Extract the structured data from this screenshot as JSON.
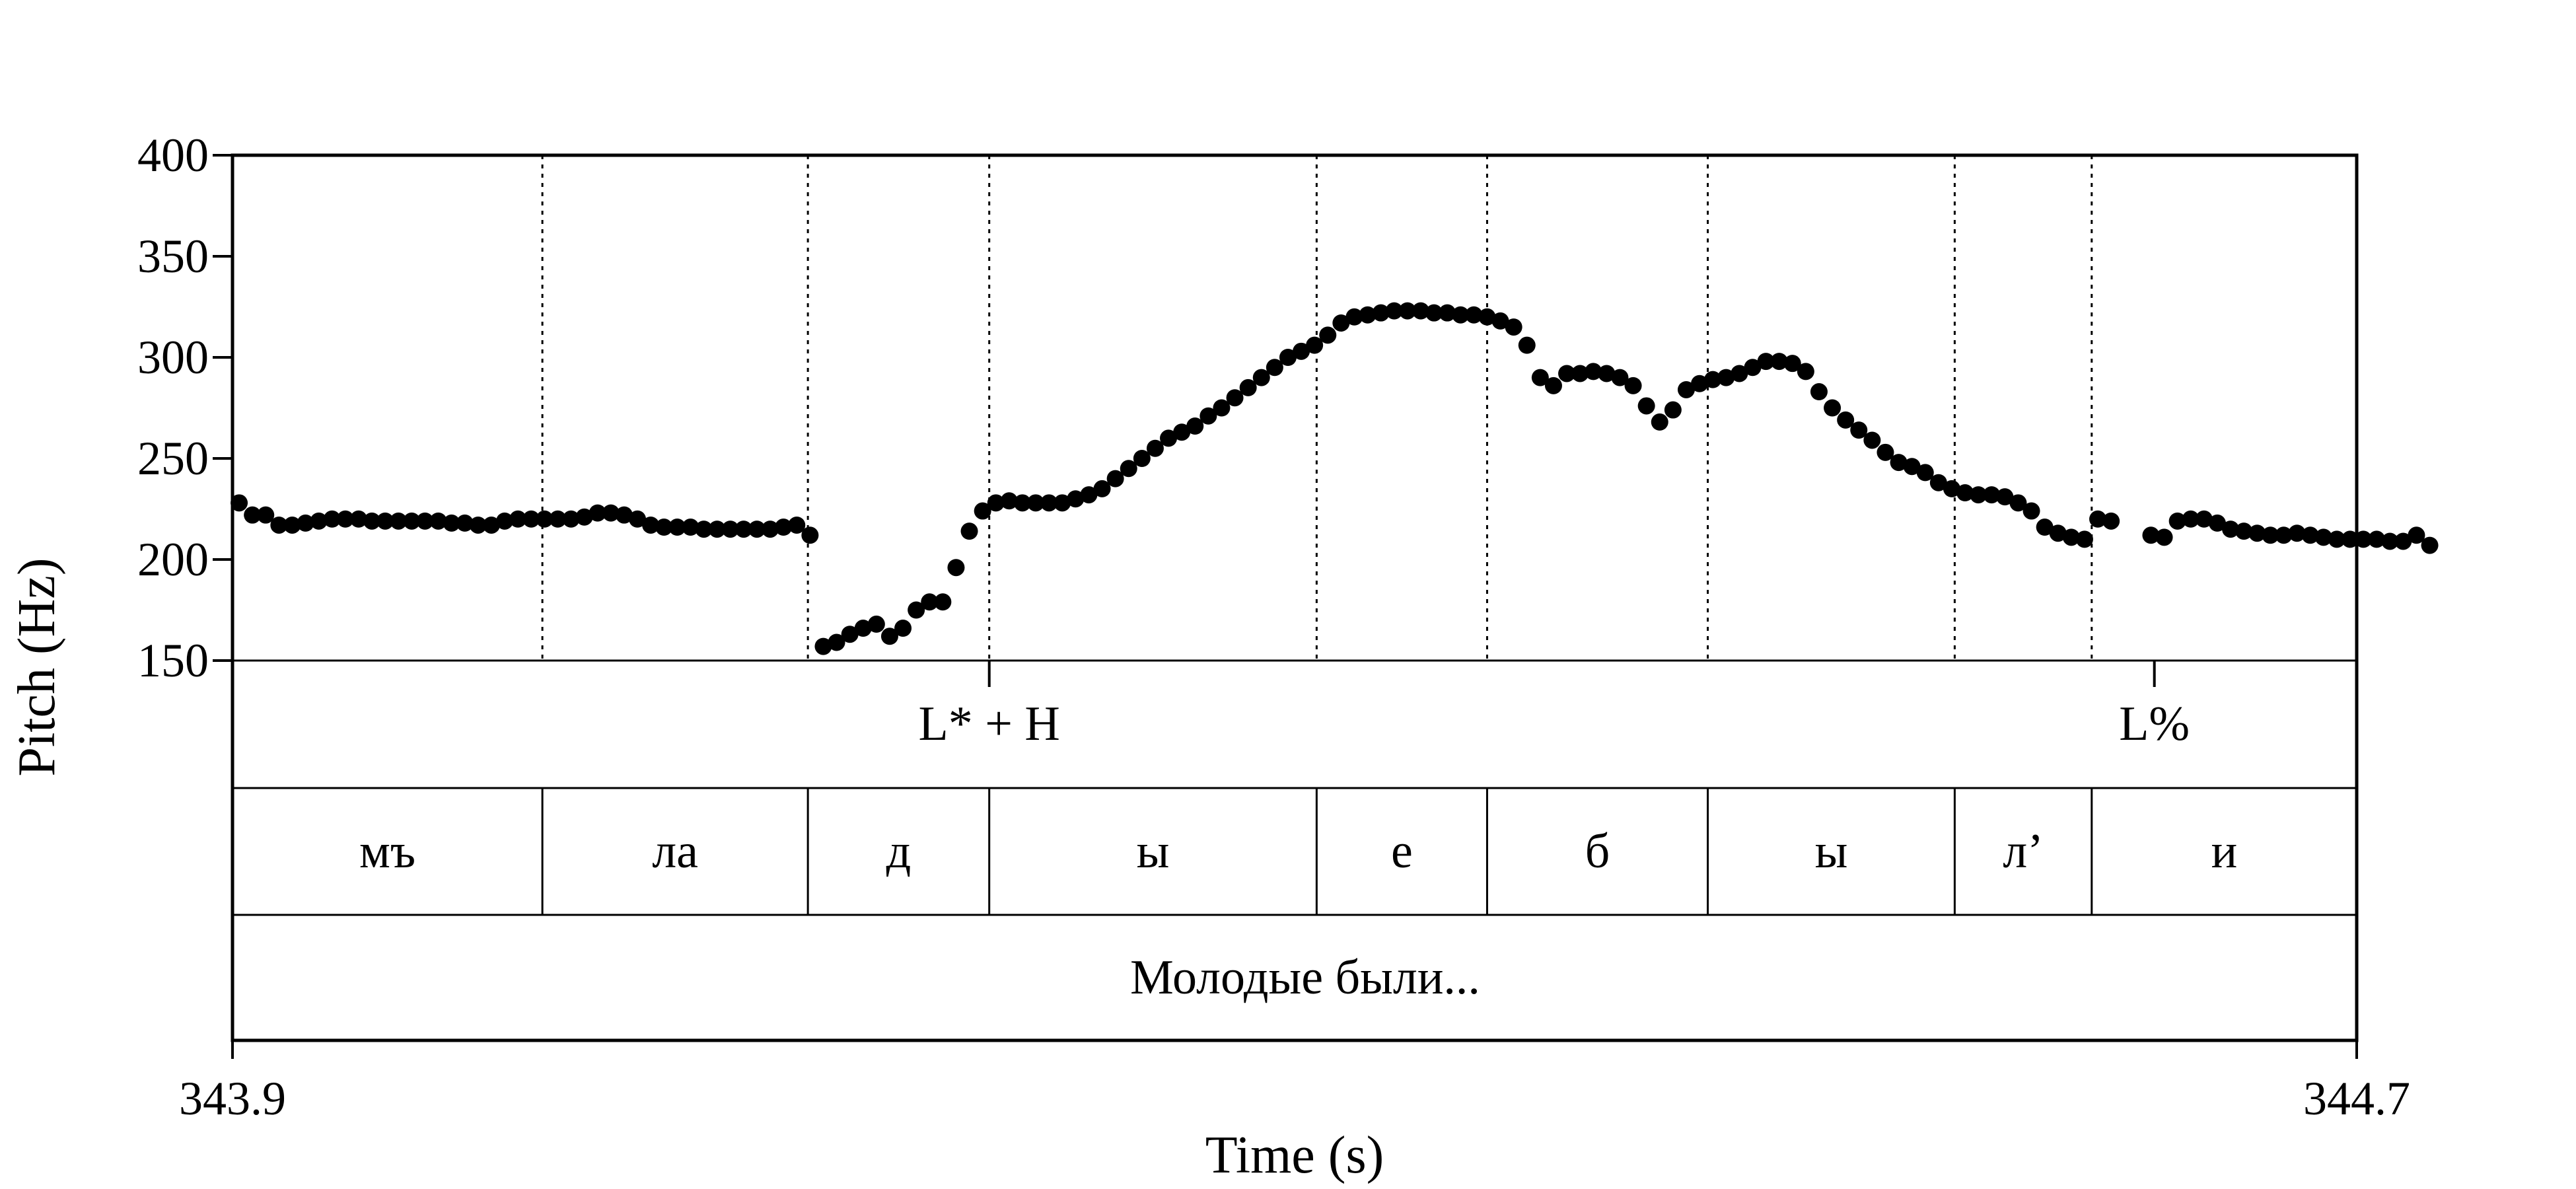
{
  "chart_data": {
    "type": "scatter",
    "xlabel": "Time (s)",
    "ylabel": "Pitch (Hz)",
    "xlim": [
      343.9,
      344.7
    ],
    "ylim": [
      150,
      400
    ],
    "x_tick_labels": [
      "343.9",
      "344.7"
    ],
    "y_ticks": [
      150,
      200,
      250,
      300,
      350,
      400
    ],
    "y_tick_labels": [
      "150",
      "200",
      "250",
      "300",
      "350",
      "400"
    ],
    "grid": "vertical dotted lines at segment boundaries",
    "legend": "none",
    "marker_color": "#000000",
    "series": [
      {
        "points": [
          [
            343.9025,
            228
          ],
          [
            343.9075,
            222
          ],
          [
            343.9125,
            222
          ],
          [
            343.9175,
            217
          ],
          [
            343.9225,
            217
          ],
          [
            343.9275,
            218
          ],
          [
            343.9325,
            219
          ],
          [
            343.9375,
            220
          ],
          [
            343.9425,
            220
          ],
          [
            343.9475,
            220
          ],
          [
            343.9525,
            219
          ],
          [
            343.9575,
            219
          ],
          [
            343.9625,
            219
          ],
          [
            343.9675,
            219
          ],
          [
            343.9725,
            219
          ],
          [
            343.9775,
            219
          ],
          [
            343.9825,
            218
          ],
          [
            343.9875,
            218
          ],
          [
            343.9925,
            217
          ],
          [
            343.9975,
            217
          ],
          [
            344.0025,
            219
          ],
          [
            344.0075,
            220
          ],
          [
            344.0125,
            220
          ],
          [
            344.0175,
            220
          ],
          [
            344.0225,
            220
          ],
          [
            344.0275,
            220
          ],
          [
            344.0325,
            221
          ],
          [
            344.0375,
            223
          ],
          [
            344.0425,
            223
          ],
          [
            344.0475,
            222
          ],
          [
            344.0525,
            220
          ],
          [
            344.0575,
            217
          ],
          [
            344.0625,
            216
          ],
          [
            344.0675,
            216
          ],
          [
            344.0725,
            216
          ],
          [
            344.0775,
            215
          ],
          [
            344.0825,
            215
          ],
          [
            344.0875,
            215
          ],
          [
            344.0925,
            215
          ],
          [
            344.0975,
            215
          ],
          [
            344.1025,
            215
          ],
          [
            344.1075,
            216
          ],
          [
            344.1125,
            217
          ],
          [
            344.1175,
            212
          ],
          [
            344.1225,
            157
          ],
          [
            344.1275,
            159
          ],
          [
            344.1325,
            163
          ],
          [
            344.1375,
            166
          ],
          [
            344.1425,
            168
          ],
          [
            344.1475,
            162
          ],
          [
            344.1525,
            166
          ],
          [
            344.1575,
            175
          ],
          [
            344.1625,
            179
          ],
          [
            344.1675,
            179
          ],
          [
            344.1725,
            196
          ],
          [
            344.1775,
            214
          ],
          [
            344.1825,
            224
          ],
          [
            344.1875,
            228
          ],
          [
            344.1925,
            229
          ],
          [
            344.1975,
            228
          ],
          [
            344.2025,
            228
          ],
          [
            344.2075,
            228
          ],
          [
            344.2125,
            228
          ],
          [
            344.2175,
            230
          ],
          [
            344.2225,
            232
          ],
          [
            344.2275,
            235
          ],
          [
            344.2325,
            240
          ],
          [
            344.2375,
            245
          ],
          [
            344.2425,
            250
          ],
          [
            344.2475,
            255
          ],
          [
            344.2525,
            260
          ],
          [
            344.2575,
            263
          ],
          [
            344.2625,
            266
          ],
          [
            344.2675,
            271
          ],
          [
            344.2725,
            275
          ],
          [
            344.2775,
            280
          ],
          [
            344.2825,
            285
          ],
          [
            344.2875,
            290
          ],
          [
            344.2925,
            295
          ],
          [
            344.2975,
            300
          ],
          [
            344.3025,
            303
          ],
          [
            344.3075,
            306
          ],
          [
            344.3125,
            311
          ],
          [
            344.3175,
            317
          ],
          [
            344.3225,
            320
          ],
          [
            344.3275,
            321
          ],
          [
            344.3325,
            322
          ],
          [
            344.3375,
            323
          ],
          [
            344.3425,
            323
          ],
          [
            344.3475,
            323
          ],
          [
            344.3525,
            322
          ],
          [
            344.3575,
            322
          ],
          [
            344.3625,
            321
          ],
          [
            344.3675,
            321
          ],
          [
            344.3725,
            320
          ],
          [
            344.3775,
            318
          ],
          [
            344.3825,
            315
          ],
          [
            344.3875,
            306
          ],
          [
            344.3925,
            290
          ],
          [
            344.3975,
            286
          ],
          [
            344.4025,
            292
          ],
          [
            344.4075,
            292
          ],
          [
            344.4125,
            293
          ],
          [
            344.4175,
            292
          ],
          [
            344.4225,
            290
          ],
          [
            344.4275,
            286
          ],
          [
            344.4325,
            276
          ],
          [
            344.4375,
            268
          ],
          [
            344.4425,
            274
          ],
          [
            344.4475,
            284
          ],
          [
            344.4525,
            287
          ],
          [
            344.4575,
            289
          ],
          [
            344.4625,
            290
          ],
          [
            344.4675,
            292
          ],
          [
            344.4725,
            295
          ],
          [
            344.4775,
            298
          ],
          [
            344.4825,
            298
          ],
          [
            344.4875,
            297
          ],
          [
            344.4925,
            293
          ],
          [
            344.4975,
            283
          ],
          [
            344.5025,
            275
          ],
          [
            344.5075,
            269
          ],
          [
            344.5125,
            264
          ],
          [
            344.5175,
            259
          ],
          [
            344.5225,
            253
          ],
          [
            344.5275,
            248
          ],
          [
            344.5325,
            246
          ],
          [
            344.5375,
            243
          ],
          [
            344.5425,
            238
          ],
          [
            344.5475,
            235
          ],
          [
            344.5525,
            233
          ],
          [
            344.5575,
            232
          ],
          [
            344.5625,
            232
          ],
          [
            344.5675,
            231
          ],
          [
            344.5725,
            228
          ],
          [
            344.5775,
            224
          ],
          [
            344.5825,
            216
          ],
          [
            344.5875,
            213
          ],
          [
            344.5925,
            211
          ],
          [
            344.5975,
            210
          ],
          [
            344.6025,
            220
          ],
          [
            344.6075,
            219
          ],
          [
            344.6225,
            212
          ],
          [
            344.6275,
            211
          ],
          [
            344.6325,
            219
          ],
          [
            344.6375,
            220
          ],
          [
            344.6425,
            220
          ],
          [
            344.6475,
            218
          ],
          [
            344.6525,
            215
          ],
          [
            344.6575,
            214
          ],
          [
            344.6625,
            213
          ],
          [
            344.6675,
            212
          ],
          [
            344.6725,
            212
          ],
          [
            344.6775,
            213
          ],
          [
            344.6825,
            212
          ],
          [
            344.6875,
            211
          ],
          [
            344.6925,
            210
          ],
          [
            344.6975,
            210
          ],
          [
            344.7025,
            210
          ],
          [
            344.7075,
            210
          ],
          [
            344.7125,
            209
          ],
          [
            344.7175,
            209
          ],
          [
            344.7225,
            212
          ],
          [
            344.7275,
            207
          ]
        ]
      }
    ],
    "tiers": {
      "tones": [
        {
          "time": 344.185,
          "label": "L* + H"
        },
        {
          "time": 344.6238,
          "label": "L%"
        }
      ],
      "segments": {
        "boundaries": [
          344.0167,
          344.1167,
          344.185,
          344.3083,
          344.3725,
          344.4556,
          344.5486,
          344.6002
        ],
        "labels": [
          "мъ",
          "ла",
          "д",
          "ы",
          "е",
          "б",
          "ы",
          "л’",
          "и"
        ]
      },
      "phrase": "Молодые были..."
    }
  }
}
